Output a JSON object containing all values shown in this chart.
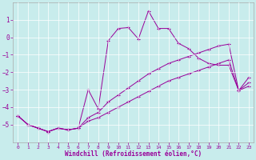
{
  "xlabel": "Windchill (Refroidissement éolien,°C)",
  "background_color": "#c8ecec",
  "line_color": "#990099",
  "x_data": [
    0,
    1,
    2,
    3,
    4,
    5,
    6,
    7,
    8,
    9,
    10,
    11,
    12,
    13,
    14,
    15,
    16,
    17,
    18,
    19,
    20,
    21,
    22,
    23
  ],
  "y_main": [
    -4.5,
    -5.0,
    -5.2,
    -5.4,
    -5.2,
    -5.3,
    -5.2,
    -3.0,
    -4.1,
    -0.2,
    0.5,
    0.55,
    -0.1,
    1.5,
    0.5,
    0.5,
    -0.35,
    -0.65,
    -1.2,
    -1.5,
    -1.6,
    -1.6,
    -3.05,
    -2.3
  ],
  "y_line2": [
    -4.5,
    -5.0,
    -5.2,
    -5.4,
    -5.2,
    -5.3,
    -5.2,
    -4.6,
    -4.3,
    -3.7,
    -3.3,
    -2.9,
    -2.5,
    -2.1,
    -1.8,
    -1.5,
    -1.3,
    -1.1,
    -0.9,
    -0.7,
    -0.5,
    -0.4,
    -3.05,
    -2.6
  ],
  "y_line3": [
    -4.5,
    -5.0,
    -5.2,
    -5.4,
    -5.2,
    -5.3,
    -5.2,
    -4.8,
    -4.6,
    -4.3,
    -4.0,
    -3.7,
    -3.4,
    -3.1,
    -2.8,
    -2.5,
    -2.3,
    -2.1,
    -1.9,
    -1.7,
    -1.5,
    -1.3,
    -3.05,
    -2.8
  ],
  "ylim": [
    -6,
    2
  ],
  "xlim": [
    -0.5,
    23.5
  ],
  "yticks": [
    1,
    0,
    -1,
    -2,
    -3,
    -4,
    -5
  ],
  "xticks": [
    0,
    1,
    2,
    3,
    4,
    5,
    6,
    7,
    8,
    9,
    10,
    11,
    12,
    13,
    14,
    15,
    16,
    17,
    18,
    19,
    20,
    21,
    22,
    23
  ]
}
